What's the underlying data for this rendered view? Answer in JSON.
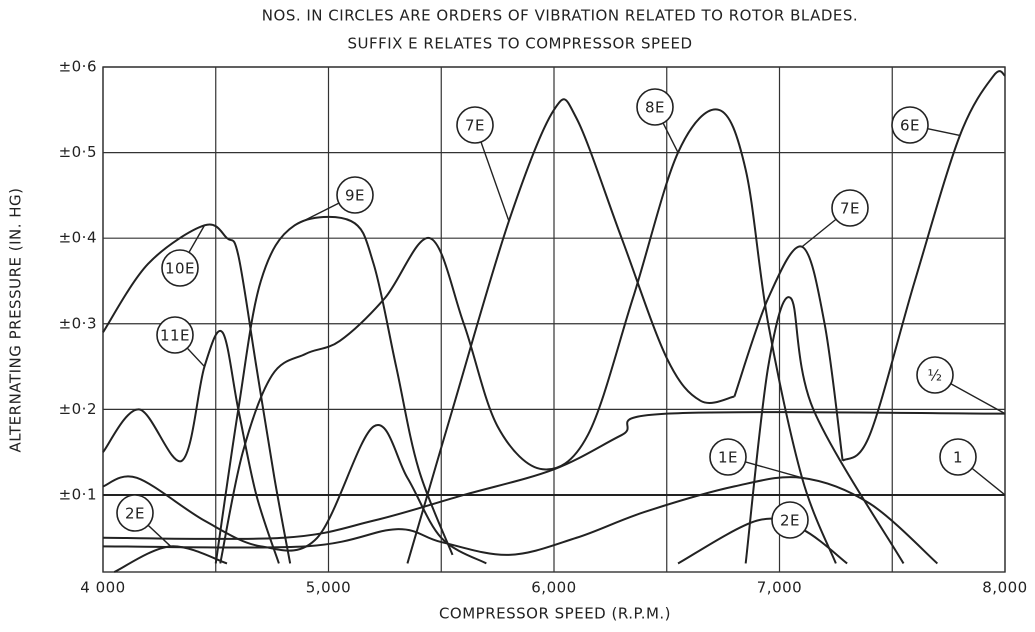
{
  "chart_data": {
    "type": "line",
    "title": "NOS. IN CIRCLES ARE ORDERS OF VIBRATION RELATED TO ROTOR BLADES.",
    "subtitle": "SUFFIX  E  RELATES  TO  COMPRESSOR  SPEED",
    "x_label": "COMPRESSOR   SPEED   (R.P.M.)",
    "y_label": "ALTERNATING   PRESSURE   (IN. HG)",
    "color": "#222222",
    "xlim": [
      4000,
      8000
    ],
    "ylim": [
      0.01,
      0.6
    ],
    "xticks": [
      {
        "value": 4000,
        "label": "4 000"
      },
      {
        "value": 5000,
        "label": "5,000"
      },
      {
        "value": 6000,
        "label": "6,000"
      },
      {
        "value": 7000,
        "label": "7,000"
      },
      {
        "value": 8000,
        "label": "8,000"
      }
    ],
    "xminor_ticks": [
      4500,
      5500,
      6500,
      7500
    ],
    "yticks": [
      {
        "value": 0.1,
        "label": "±0·1"
      },
      {
        "value": 0.2,
        "label": "±0·2"
      },
      {
        "value": 0.3,
        "label": "±0·3"
      },
      {
        "value": 0.4,
        "label": "±0·4"
      },
      {
        "value": 0.5,
        "label": "±0·5"
      },
      {
        "value": 0.6,
        "label": "±0·6"
      }
    ],
    "grid": true,
    "series": [
      {
        "name": "10E",
        "x": [
          4000,
          4200,
          4450,
          4550,
          4600,
          4680,
          4760,
          4830
        ],
        "values": [
          0.29,
          0.37,
          0.415,
          0.4,
          0.38,
          0.25,
          0.12,
          0.02
        ]
      },
      {
        "name": "11E",
        "x": [
          4000,
          4160,
          4350,
          4450,
          4530,
          4600,
          4680,
          4780
        ],
        "values": [
          0.15,
          0.2,
          0.14,
          0.25,
          0.29,
          0.2,
          0.1,
          0.02
        ]
      },
      {
        "name": "9E",
        "x": [
          4500,
          4600,
          4700,
          4850,
          5100,
          5200,
          5300,
          5400,
          5550
        ],
        "values": [
          0.02,
          0.2,
          0.35,
          0.415,
          0.42,
          0.37,
          0.25,
          0.13,
          0.03
        ]
      },
      {
        "name": "8E",
        "x": [
          4520,
          4620,
          4750,
          4900,
          5050,
          5250,
          5450,
          5600,
          5750,
          5950,
          6150,
          6350,
          6550,
          6730,
          6850,
          6950,
          7100,
          7250
        ],
        "values": [
          0.02,
          0.15,
          0.24,
          0.265,
          0.28,
          0.33,
          0.4,
          0.3,
          0.18,
          0.13,
          0.17,
          0.33,
          0.5,
          0.55,
          0.48,
          0.3,
          0.12,
          0.02
        ]
      },
      {
        "name": "7E",
        "x": [
          5350,
          5550,
          5800,
          6000,
          6100,
          6300,
          6500,
          6650,
          6800
        ],
        "values": [
          0.02,
          0.2,
          0.42,
          0.55,
          0.54,
          0.4,
          0.26,
          0.21,
          0.215
        ]
      },
      {
        "name": "7E",
        "x": [
          6800,
          6950,
          7100,
          7200,
          7280
        ],
        "values": [
          0.215,
          0.33,
          0.39,
          0.3,
          0.14
        ]
      },
      {
        "name": "6E",
        "x": [
          7280,
          7400,
          7600,
          7800,
          7950,
          8000
        ],
        "values": [
          0.14,
          0.17,
          0.35,
          0.52,
          0.59,
          0.59
        ]
      },
      {
        "name": "½",
        "x": [
          4000,
          4800,
          5200,
          5600,
          6000,
          6300,
          6500,
          8000
        ],
        "values": [
          0.05,
          0.05,
          0.07,
          0.1,
          0.13,
          0.17,
          0.195,
          0.195
        ]
      },
      {
        "name": "1",
        "x": [
          4000,
          8000
        ],
        "values": [
          0.1,
          0.1
        ]
      },
      {
        "name": "1E",
        "x": [
          4000,
          4900,
          5300,
          5500,
          5800,
          6100,
          6400,
          6800,
          7100,
          7400,
          7700
        ],
        "values": [
          0.04,
          0.04,
          0.06,
          0.045,
          0.03,
          0.05,
          0.08,
          0.11,
          0.12,
          0.09,
          0.02
        ]
      },
      {
        "name": "2E",
        "x": [
          4050,
          4300,
          4550
        ],
        "values": [
          0.01,
          0.04,
          0.02
        ]
      },
      {
        "name": "2E",
        "x": [
          6550,
          6900,
          7100,
          7300
        ],
        "values": [
          0.02,
          0.07,
          0.06,
          0.02
        ]
      },
      {
        "name": null,
        "x": [
          4000,
          4150,
          4450,
          4700,
          4950,
          5200,
          5350,
          5500,
          5700
        ],
        "values": [
          0.11,
          0.12,
          0.07,
          0.04,
          0.05,
          0.18,
          0.12,
          0.05,
          0.02
        ]
      },
      {
        "name": null,
        "x": [
          6850,
          6950,
          7050,
          7150,
          7550
        ],
        "values": [
          0.02,
          0.25,
          0.33,
          0.2,
          0.02
        ]
      }
    ]
  }
}
